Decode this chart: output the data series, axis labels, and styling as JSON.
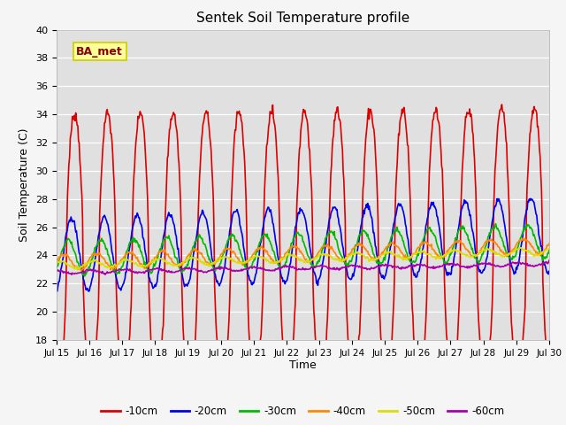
{
  "title": "Sentek Soil Temperature profile",
  "xlabel": "Time",
  "ylabel": "Soil Temperature (C)",
  "ylim": [
    18,
    40
  ],
  "xlim": [
    0,
    360
  ],
  "plot_bg_color": "#e0e0e0",
  "fig_bg_color": "#f5f5f5",
  "annotation_text": "BA_met",
  "annotation_box_color": "#ffff99",
  "annotation_box_edge": "#cccc00",
  "series_colors": {
    "-10cm": "#dd0000",
    "-20cm": "#0000ee",
    "-30cm": "#00bb00",
    "-40cm": "#ff8800",
    "-50cm": "#dddd00",
    "-60cm": "#aa00aa"
  },
  "series_lw": {
    "-10cm": 1.2,
    "-20cm": 1.2,
    "-30cm": 1.2,
    "-40cm": 1.2,
    "-50cm": 1.2,
    "-60cm": 1.2
  },
  "xtick_labels": [
    "Jul 15",
    "Jul 16",
    "Jul 17",
    "Jul 18",
    "Jul 19",
    "Jul 20",
    "Jul 21",
    "Jul 22",
    "Jul 23",
    "Jul 24",
    "Jul 25",
    "Jul 26",
    "Jul 27",
    "Jul 28",
    "Jul 29",
    "Jul 30"
  ],
  "xtick_positions": [
    0,
    24,
    48,
    72,
    96,
    120,
    144,
    168,
    192,
    216,
    240,
    264,
    288,
    312,
    336,
    360
  ],
  "ytick_labels": [
    "18",
    "20",
    "22",
    "24",
    "26",
    "28",
    "30",
    "32",
    "34",
    "36",
    "38",
    "40"
  ],
  "ytick_positions": [
    18,
    20,
    22,
    24,
    26,
    28,
    30,
    32,
    34,
    36,
    38,
    40
  ],
  "legend_labels": [
    "-10cm",
    "-20cm",
    "-30cm",
    "-40cm",
    "-50cm",
    "-60cm"
  ],
  "n_points": 721,
  "days": 15
}
